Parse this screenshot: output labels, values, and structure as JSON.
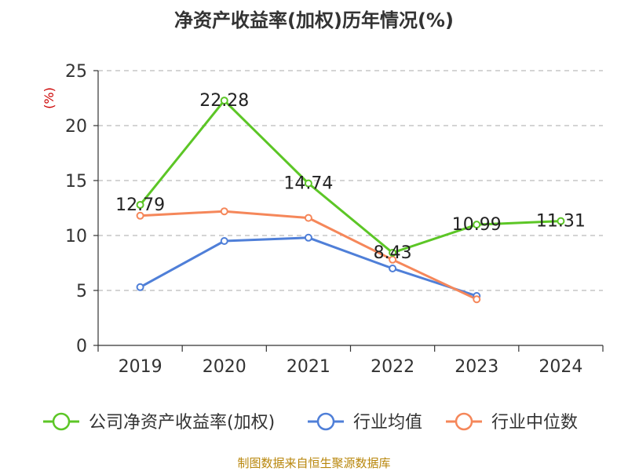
{
  "chart_data": {
    "type": "line",
    "title": "净资产收益率(加权)历年情况(%)",
    "ylabel": "(%)",
    "categories": [
      "2019",
      "2020",
      "2021",
      "2022",
      "2023",
      "2024"
    ],
    "ylim": [
      0,
      25
    ],
    "yticks": [
      0,
      5,
      10,
      15,
      20,
      25
    ],
    "grid": true,
    "legend_position": "bottom",
    "series": [
      {
        "name": "公司净资产收益率(加权)",
        "color": "#5cc626",
        "values": [
          12.79,
          22.28,
          14.74,
          8.43,
          10.99,
          11.31
        ],
        "labels": [
          "12.79",
          "22.28",
          "14.74",
          "8.43",
          "10.99",
          "11.31"
        ]
      },
      {
        "name": "行业均值",
        "color": "#4f7fd8",
        "values": [
          5.3,
          9.5,
          9.8,
          7.0,
          4.5,
          null
        ]
      },
      {
        "name": "行业中位数",
        "color": "#f5875a",
        "values": [
          11.8,
          12.2,
          11.6,
          7.8,
          4.2,
          null
        ]
      }
    ]
  },
  "footer": "制图数据来自恒生聚源数据库"
}
